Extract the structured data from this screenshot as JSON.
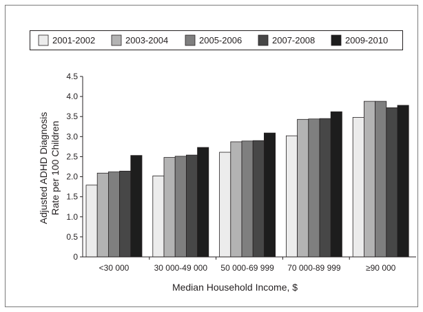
{
  "chart_data": {
    "type": "bar",
    "title": "",
    "xlabel": "Median Household Income, $",
    "ylabel": [
      "Adjusted ADHD Diagnosis",
      "Rate per 100 Children"
    ],
    "ylim": [
      0,
      4.5
    ],
    "yticks": [
      "0",
      "0.5",
      "1.0",
      "1.5",
      "2.0",
      "2.5",
      "3.0",
      "3.5",
      "4.0",
      "4.5"
    ],
    "ytick_values": [
      0,
      0.5,
      1.0,
      1.5,
      2.0,
      2.5,
      3.0,
      3.5,
      4.0,
      4.5
    ],
    "categories": [
      "<30 000",
      "30 000-49 000",
      "50 000-69 999",
      "70 000-89 999",
      "≥90 000"
    ],
    "legend_position": "top",
    "grid": false,
    "series": [
      {
        "name": "2001-2002",
        "color": "#ececec",
        "values": [
          1.79,
          2.02,
          2.61,
          3.02,
          3.48
        ]
      },
      {
        "name": "2003-2004",
        "color": "#b3b3b3",
        "values": [
          2.09,
          2.48,
          2.87,
          3.43,
          3.88
        ]
      },
      {
        "name": "2005-2006",
        "color": "#7f7f7f",
        "values": [
          2.12,
          2.51,
          2.89,
          3.44,
          3.88
        ]
      },
      {
        "name": "2007-2008",
        "color": "#474747",
        "values": [
          2.14,
          2.54,
          2.9,
          3.45,
          3.72
        ]
      },
      {
        "name": "2009-2010",
        "color": "#1d1d1d",
        "values": [
          2.53,
          2.73,
          3.09,
          3.62,
          3.78
        ]
      }
    ]
  }
}
